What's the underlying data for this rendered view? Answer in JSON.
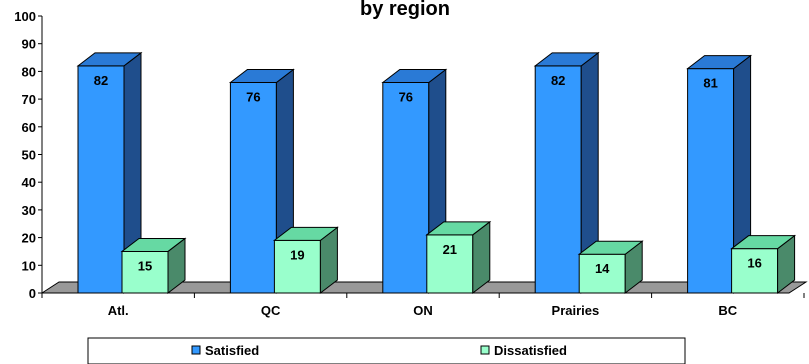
{
  "chart_data": {
    "type": "bar",
    "title": "by region",
    "xlabel": "",
    "ylabel": "",
    "ylim": [
      0,
      100
    ],
    "yticks": [
      0,
      10,
      20,
      30,
      40,
      50,
      60,
      70,
      80,
      90,
      100
    ],
    "categories": [
      "Atl.",
      "QC",
      "ON",
      "Prairies",
      "BC"
    ],
    "series": [
      {
        "name": "Satisfied",
        "values": [
          82,
          76,
          76,
          82,
          81
        ],
        "color": "#3399ff",
        "side_color": "#1f4e8c",
        "top_color": "#2a7ad6"
      },
      {
        "name": "Dissatisfied",
        "values": [
          15,
          19,
          21,
          14,
          16
        ],
        "color": "#99ffcc",
        "side_color": "#4a8a6a",
        "top_color": "#66d9a3"
      }
    ],
    "grid": false,
    "legend_position": "bottom",
    "floor_color": "#999999"
  }
}
